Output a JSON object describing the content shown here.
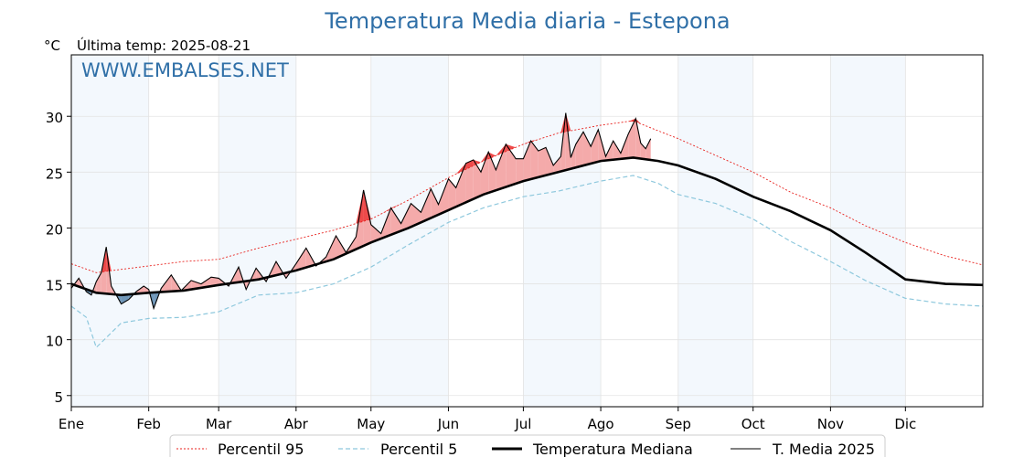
{
  "chart_data": {
    "type": "line",
    "title": "Temperatura Media diaria - Estepona",
    "unit_label": "°C",
    "subtitle": "Última temp: 2025-08-21",
    "watermark": "WWW.EMBALSES.NET",
    "ylim": [
      4,
      35.5
    ],
    "y_ticks": [
      5,
      10,
      15,
      20,
      25,
      30
    ],
    "x_range_days": [
      0,
      365
    ],
    "months": [
      {
        "label": "Ene",
        "day": 0
      },
      {
        "label": "Feb",
        "day": 31
      },
      {
        "label": "Mar",
        "day": 59
      },
      {
        "label": "Abr",
        "day": 90
      },
      {
        "label": "May",
        "day": 120
      },
      {
        "label": "Jun",
        "day": 151
      },
      {
        "label": "Jul",
        "day": 181
      },
      {
        "label": "Ago",
        "day": 212
      },
      {
        "label": "Sep",
        "day": 243
      },
      {
        "label": "Oct",
        "day": 273
      },
      {
        "label": "Nov",
        "day": 304
      },
      {
        "label": "Dic",
        "day": 334
      }
    ],
    "shaded_months": [
      {
        "start": 0,
        "end": 31
      },
      {
        "start": 59,
        "end": 90
      },
      {
        "start": 120,
        "end": 151
      },
      {
        "start": 181,
        "end": 212
      },
      {
        "start": 243,
        "end": 273
      },
      {
        "start": 304,
        "end": 334
      }
    ],
    "grid": true,
    "legend_position": "bottom-center",
    "colors": {
      "title": "#2f6fa7",
      "p95": "#e8221e",
      "p5": "#8ec8dd",
      "median": "#000000",
      "current": "#000000",
      "above_fill": "#f4aaaa",
      "above_strong_fill": "#ee4a4a",
      "below_fill": "#6f97b9",
      "shade": "#f3f8fd",
      "grid": "#e3e3e3"
    },
    "series": [
      {
        "name": "Percentil 95",
        "style": "dotted",
        "points": [
          [
            0,
            16.8
          ],
          [
            10,
            16.0
          ],
          [
            20,
            16.3
          ],
          [
            31,
            16.6
          ],
          [
            45,
            17.0
          ],
          [
            59,
            17.2
          ],
          [
            75,
            18.2
          ],
          [
            90,
            19.0
          ],
          [
            105,
            19.8
          ],
          [
            120,
            20.8
          ],
          [
            135,
            22.5
          ],
          [
            151,
            24.5
          ],
          [
            165,
            26.0
          ],
          [
            181,
            27.5
          ],
          [
            195,
            28.5
          ],
          [
            212,
            29.2
          ],
          [
            225,
            29.6
          ],
          [
            235,
            28.7
          ],
          [
            243,
            28.0
          ],
          [
            258,
            26.5
          ],
          [
            273,
            25.0
          ],
          [
            288,
            23.2
          ],
          [
            304,
            21.8
          ],
          [
            318,
            20.2
          ],
          [
            334,
            18.7
          ],
          [
            350,
            17.5
          ],
          [
            365,
            16.7
          ]
        ]
      },
      {
        "name": "Percentil 5",
        "style": "dashed",
        "points": [
          [
            0,
            13.0
          ],
          [
            6,
            12.0
          ],
          [
            10,
            9.3
          ],
          [
            20,
            11.5
          ],
          [
            31,
            11.9
          ],
          [
            45,
            12.0
          ],
          [
            59,
            12.5
          ],
          [
            75,
            14.0
          ],
          [
            90,
            14.2
          ],
          [
            105,
            15.0
          ],
          [
            120,
            16.5
          ],
          [
            135,
            18.5
          ],
          [
            151,
            20.5
          ],
          [
            165,
            21.8
          ],
          [
            181,
            22.8
          ],
          [
            195,
            23.3
          ],
          [
            212,
            24.2
          ],
          [
            225,
            24.7
          ],
          [
            235,
            24.0
          ],
          [
            243,
            23.0
          ],
          [
            258,
            22.2
          ],
          [
            273,
            20.8
          ],
          [
            288,
            18.8
          ],
          [
            304,
            17.0
          ],
          [
            318,
            15.3
          ],
          [
            334,
            13.7
          ],
          [
            350,
            13.2
          ],
          [
            365,
            13.0
          ]
        ]
      },
      {
        "name": "Temperatura Mediana",
        "style": "solid-thick",
        "points": [
          [
            0,
            15.0
          ],
          [
            10,
            14.2
          ],
          [
            20,
            14.0
          ],
          [
            31,
            14.2
          ],
          [
            45,
            14.4
          ],
          [
            59,
            14.9
          ],
          [
            75,
            15.4
          ],
          [
            90,
            16.2
          ],
          [
            105,
            17.2
          ],
          [
            120,
            18.7
          ],
          [
            135,
            20.0
          ],
          [
            151,
            21.6
          ],
          [
            165,
            23.0
          ],
          [
            181,
            24.2
          ],
          [
            195,
            25.0
          ],
          [
            212,
            26.0
          ],
          [
            225,
            26.3
          ],
          [
            235,
            26.0
          ],
          [
            243,
            25.6
          ],
          [
            258,
            24.4
          ],
          [
            273,
            22.8
          ],
          [
            288,
            21.5
          ],
          [
            304,
            19.8
          ],
          [
            318,
            17.8
          ],
          [
            334,
            15.4
          ],
          [
            350,
            15.0
          ],
          [
            365,
            14.9
          ]
        ]
      },
      {
        "name": "T. Media 2025",
        "style": "solid-thin",
        "points": [
          [
            0,
            14.6
          ],
          [
            3,
            15.5
          ],
          [
            6,
            14.3
          ],
          [
            8,
            14.0
          ],
          [
            10,
            15.2
          ],
          [
            12,
            16.0
          ],
          [
            14,
            18.3
          ],
          [
            16,
            14.8
          ],
          [
            18,
            14.0
          ],
          [
            20,
            13.2
          ],
          [
            23,
            13.6
          ],
          [
            26,
            14.3
          ],
          [
            29,
            14.8
          ],
          [
            31,
            14.5
          ],
          [
            33,
            12.8
          ],
          [
            36,
            14.6
          ],
          [
            40,
            15.8
          ],
          [
            44,
            14.4
          ],
          [
            48,
            15.3
          ],
          [
            52,
            15.0
          ],
          [
            56,
            15.6
          ],
          [
            59,
            15.5
          ],
          [
            63,
            14.8
          ],
          [
            67,
            16.5
          ],
          [
            70,
            14.5
          ],
          [
            74,
            16.4
          ],
          [
            78,
            15.2
          ],
          [
            82,
            17.0
          ],
          [
            86,
            15.5
          ],
          [
            90,
            16.8
          ],
          [
            94,
            18.2
          ],
          [
            98,
            16.6
          ],
          [
            102,
            17.4
          ],
          [
            106,
            19.3
          ],
          [
            110,
            17.8
          ],
          [
            114,
            19.2
          ],
          [
            117,
            23.4
          ],
          [
            120,
            20.3
          ],
          [
            124,
            19.5
          ],
          [
            128,
            21.8
          ],
          [
            132,
            20.4
          ],
          [
            136,
            22.2
          ],
          [
            140,
            21.4
          ],
          [
            144,
            23.5
          ],
          [
            147,
            22.1
          ],
          [
            151,
            24.4
          ],
          [
            154,
            23.6
          ],
          [
            158,
            25.8
          ],
          [
            161,
            26.1
          ],
          [
            164,
            25.0
          ],
          [
            167,
            26.8
          ],
          [
            170,
            25.2
          ],
          [
            174,
            27.5
          ],
          [
            178,
            26.2
          ],
          [
            181,
            26.2
          ],
          [
            184,
            27.8
          ],
          [
            187,
            26.9
          ],
          [
            190,
            27.2
          ],
          [
            193,
            25.6
          ],
          [
            196,
            26.4
          ],
          [
            198,
            30.3
          ],
          [
            200,
            26.3
          ],
          [
            202,
            27.5
          ],
          [
            205,
            28.6
          ],
          [
            208,
            27.3
          ],
          [
            211,
            28.8
          ],
          [
            214,
            26.4
          ],
          [
            217,
            27.8
          ],
          [
            220,
            26.7
          ],
          [
            223,
            28.4
          ],
          [
            226,
            29.8
          ],
          [
            228,
            27.6
          ],
          [
            230,
            27.1
          ],
          [
            232,
            28.0
          ]
        ]
      }
    ],
    "legend": {
      "p95": "Percentil 95",
      "p5": "Percentil 5",
      "median": "Temperatura Mediana",
      "current": "T. Media 2025"
    }
  }
}
